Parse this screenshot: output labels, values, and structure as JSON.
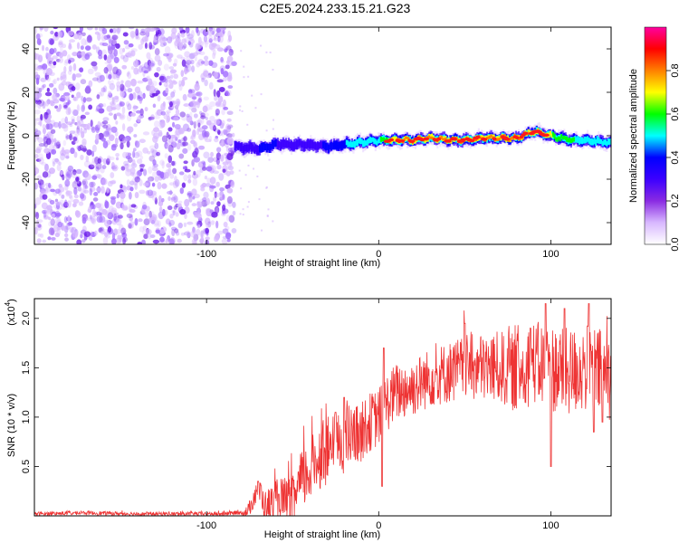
{
  "figure": {
    "title": "C2E5.2024.233.15.21.G23"
  },
  "chart_data": [
    {
      "type": "heatmap",
      "xlabel": "Height of straight line (km)",
      "ylabel": "Frequency (Hz)",
      "xlim": [
        -200,
        135
      ],
      "ylim": [
        -50,
        50
      ],
      "xticks": [
        -100,
        0,
        100
      ],
      "yticks": [
        -40,
        -20,
        0,
        20,
        40
      ],
      "colorbar": {
        "label": "Normalized spectral amplitude",
        "range": [
          0,
          1
        ],
        "ticks": [
          0.0,
          0.2,
          0.4,
          0.6,
          0.8
        ],
        "colormap": [
          "#ffffff",
          "#d8b8ff",
          "#8a2be2",
          "#3c00ff",
          "#0000ff",
          "#00ffff",
          "#00ff00",
          "#ffff00",
          "#ff8000",
          "#ff0000",
          "#ff00a0"
        ]
      },
      "noise_region_x": [
        -200,
        -84
      ],
      "signal_band": {
        "start_height": -84,
        "frequency_track": [
          [
            -84,
            -5
          ],
          [
            -70,
            -6
          ],
          [
            -60,
            -4
          ],
          [
            -45,
            -4
          ],
          [
            -30,
            -5
          ],
          [
            -20,
            -4
          ],
          [
            -10,
            -3
          ],
          [
            0,
            -2
          ],
          [
            10,
            -2
          ],
          [
            20,
            -2
          ],
          [
            30,
            -1
          ],
          [
            40,
            -2
          ],
          [
            50,
            -2
          ],
          [
            60,
            -1
          ],
          [
            70,
            -1
          ],
          [
            80,
            -1
          ],
          [
            90,
            2
          ],
          [
            100,
            0
          ],
          [
            110,
            -2
          ],
          [
            120,
            -2
          ],
          [
            130,
            -3
          ],
          [
            135,
            -3
          ]
        ],
        "amplitude_track": [
          [
            -84,
            0.3
          ],
          [
            -70,
            0.35
          ],
          [
            -60,
            0.35
          ],
          [
            -40,
            0.3
          ],
          [
            -20,
            0.45
          ],
          [
            0,
            0.55
          ],
          [
            10,
            0.75
          ],
          [
            20,
            0.8
          ],
          [
            40,
            0.75
          ],
          [
            60,
            0.85
          ],
          [
            80,
            0.8
          ],
          [
            100,
            0.65
          ],
          [
            120,
            0.5
          ],
          [
            135,
            0.45
          ]
        ]
      }
    },
    {
      "type": "line",
      "xlabel": "Height of straight line (km)",
      "ylabel": "SNR (10 * v/v)",
      "yscale_label": "(x10",
      "yscale_exp": "4",
      "ylabel_multiplier": 10000,
      "xlim": [
        -200,
        135
      ],
      "ylim": [
        0,
        2.2
      ],
      "xticks": [
        -100,
        0,
        100
      ],
      "yticks": [
        0.5,
        1.0,
        1.5,
        2.0
      ],
      "yticklabels": [
        "0.5",
        "1.0",
        "1.5",
        "2.0"
      ],
      "color": "#ee3333",
      "series": [
        {
          "values_envelope": [
            [
              -200,
              0.02
            ],
            [
              -170,
              0.03
            ],
            [
              -140,
              0.02
            ],
            [
              -110,
              0.02
            ],
            [
              -90,
              0.02
            ],
            [
              -76,
              0.04
            ],
            [
              -70,
              0.3
            ],
            [
              -66,
              0.08
            ],
            [
              -58,
              0.15
            ],
            [
              -50,
              0.1
            ],
            [
              -45,
              0.35
            ],
            [
              -40,
              0.45
            ],
            [
              -35,
              0.6
            ],
            [
              -30,
              0.65
            ],
            [
              -25,
              0.7
            ],
            [
              -20,
              0.75
            ],
            [
              -15,
              0.8
            ],
            [
              -10,
              0.85
            ],
            [
              -5,
              0.95
            ],
            [
              0,
              1.0
            ],
            [
              5,
              1.15
            ],
            [
              10,
              1.25
            ],
            [
              20,
              1.3
            ],
            [
              30,
              1.4
            ],
            [
              40,
              1.45
            ],
            [
              50,
              1.5
            ],
            [
              60,
              1.5
            ],
            [
              70,
              1.5
            ],
            [
              80,
              1.45
            ],
            [
              90,
              1.55
            ],
            [
              100,
              1.5
            ],
            [
              110,
              1.45
            ],
            [
              120,
              1.5
            ],
            [
              130,
              1.45
            ],
            [
              135,
              1.4
            ]
          ],
          "noise_amplitude": [
            [
              -200,
              0.02
            ],
            [
              -80,
              0.02
            ],
            [
              -70,
              0.15
            ],
            [
              -50,
              0.3
            ],
            [
              -30,
              0.35
            ],
            [
              -10,
              0.3
            ],
            [
              0,
              0.3
            ],
            [
              30,
              0.3
            ],
            [
              60,
              0.35
            ],
            [
              100,
              0.45
            ],
            [
              135,
              0.45
            ]
          ],
          "peaks": [
            [
              -70,
              0.35
            ],
            [
              -58,
              0.22
            ],
            [
              -25,
              1.05
            ],
            [
              -20,
              1.2
            ],
            [
              -13,
              1.1
            ],
            [
              3,
              1.7
            ],
            [
              50,
              1.95
            ],
            [
              88,
              1.9
            ],
            [
              97,
              2.15
            ],
            [
              108,
              2.1
            ],
            [
              122,
              2.15
            ],
            [
              130,
              1.95
            ]
          ],
          "dips": [
            [
              2,
              0.3
            ],
            [
              100,
              0.5
            ],
            [
              125,
              0.85
            ],
            [
              130,
              0.95
            ]
          ]
        }
      ]
    }
  ]
}
